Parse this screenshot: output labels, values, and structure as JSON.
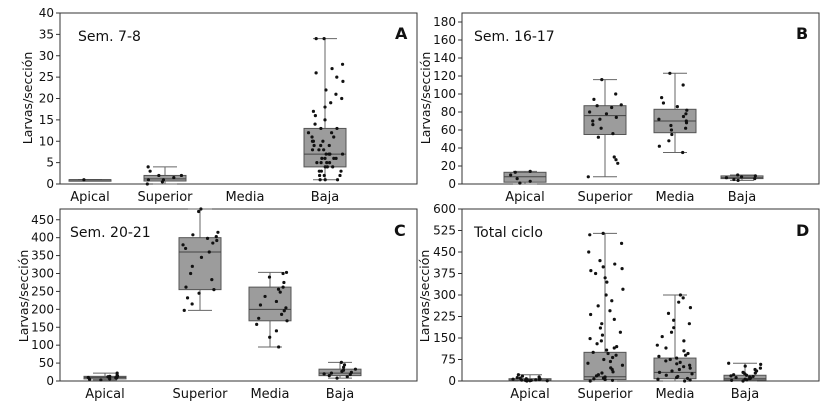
{
  "colors": {
    "box": "#9c9c9c",
    "box_stroke": "#555555",
    "point": "#111111",
    "whisker": "#666666"
  },
  "chart_data": [
    {
      "type": "box",
      "panel": "A",
      "title": "Sem. 7-8",
      "ylabel": "Larvas/sección",
      "ylim": [
        0,
        40
      ],
      "yticks": [
        0,
        5,
        10,
        15,
        20,
        25,
        30,
        35,
        40
      ],
      "categories": [
        "Apical",
        "Superior",
        "Media",
        "Baja"
      ],
      "boxes": [
        {
          "min": 1,
          "q1": 1,
          "median": 1,
          "q3": 1,
          "max": 1
        },
        {
          "min": 0,
          "q1": 0.7,
          "median": 1.2,
          "q3": 2,
          "max": 4
        },
        null,
        {
          "min": 1,
          "q1": 4,
          "median": 7,
          "q3": 13,
          "max": 34
        }
      ],
      "points": [
        [
          1
        ],
        [
          0,
          0.5,
          1,
          1,
          1.5,
          2,
          2,
          3,
          4
        ],
        [],
        [
          1,
          1,
          1,
          2,
          2,
          2,
          3,
          3,
          3,
          4,
          4,
          4,
          5,
          5,
          5,
          5,
          6,
          6,
          6,
          6,
          7,
          7,
          7,
          7,
          7,
          8,
          8,
          8,
          9,
          9,
          9,
          10,
          10,
          10,
          11,
          11,
          12,
          12,
          13,
          13,
          14,
          15,
          16,
          17,
          18,
          19,
          20,
          21,
          22,
          24,
          25,
          26,
          27,
          28,
          34,
          34
        ]
      ]
    },
    {
      "type": "box",
      "panel": "B",
      "title": "Sem. 16-17",
      "ylabel": "Larvas/sección",
      "ylim": [
        0,
        190
      ],
      "yticks": [
        0,
        20,
        40,
        60,
        80,
        100,
        120,
        140,
        160,
        180
      ],
      "categories": [
        "Apical",
        "Superior",
        "Media",
        "Baja"
      ],
      "boxes": [
        {
          "min": 0,
          "q1": 2,
          "median": 8,
          "q3": 13,
          "max": 14
        },
        {
          "min": 8,
          "q1": 55,
          "median": 76,
          "q3": 87,
          "max": 116
        },
        {
          "min": 35,
          "q1": 57,
          "median": 70,
          "q3": 83,
          "max": 123
        },
        {
          "min": 4,
          "q1": 6,
          "median": 7,
          "q3": 9,
          "max": 10
        }
      ],
      "points": [
        [
          1,
          3,
          6,
          10,
          13,
          14
        ],
        [
          8,
          23,
          27,
          30,
          52,
          56,
          62,
          66,
          70,
          72,
          74,
          78,
          80,
          85,
          87,
          88,
          94,
          100,
          116
        ],
        [
          35,
          42,
          48,
          55,
          60,
          62,
          65,
          68,
          70,
          72,
          75,
          78,
          82,
          86,
          90,
          96,
          110,
          123
        ],
        [
          4,
          5,
          6,
          7,
          8,
          9,
          10
        ]
      ]
    },
    {
      "type": "box",
      "panel": "C",
      "title": "Sem. 20-21",
      "ylabel": "Larvas/sección",
      "ylim": [
        0,
        480
      ],
      "yticks": [
        0,
        50,
        100,
        150,
        200,
        250,
        300,
        350,
        400,
        450
      ],
      "categories": [
        "Apical",
        "Superior",
        "Media",
        "Baja"
      ],
      "boxes": [
        {
          "min": 3,
          "q1": 6,
          "median": 10,
          "q3": 13,
          "max": 22
        },
        {
          "min": 197,
          "q1": 255,
          "median": 360,
          "q3": 400,
          "max": 480
        },
        {
          "min": 95,
          "q1": 168,
          "median": 200,
          "q3": 262,
          "max": 303
        },
        {
          "min": 8,
          "q1": 15,
          "median": 22,
          "q3": 33,
          "max": 52
        }
      ],
      "points": [
        [
          3,
          5,
          6,
          8,
          9,
          10,
          11,
          12,
          13,
          14,
          16,
          22
        ],
        [
          197,
          215,
          232,
          245,
          255,
          262,
          283,
          300,
          320,
          345,
          360,
          370,
          380,
          385,
          392,
          398,
          403,
          408,
          415,
          473,
          480
        ],
        [
          95,
          122,
          140,
          158,
          168,
          175,
          186,
          196,
          204,
          212,
          222,
          236,
          248,
          256,
          262,
          275,
          290,
          300,
          303
        ],
        [
          8,
          12,
          15,
          18,
          20,
          22,
          24,
          27,
          30,
          33,
          38,
          45,
          52
        ]
      ]
    },
    {
      "type": "box",
      "panel": "D",
      "title": "Total ciclo",
      "ylabel": "Larvas/sección",
      "ylim": [
        0,
        600
      ],
      "yticks": [
        0,
        75,
        150,
        225,
        300,
        375,
        450,
        525,
        600
      ],
      "categories": [
        "Apical",
        "Superior",
        "Media",
        "Baja"
      ],
      "boxes": [
        {
          "min": 0,
          "q1": 1,
          "median": 3,
          "q3": 8,
          "max": 22
        },
        {
          "min": 0,
          "q1": 5,
          "median": 15,
          "q3": 100,
          "max": 515
        },
        {
          "min": 0,
          "q1": 8,
          "median": 30,
          "q3": 80,
          "max": 300
        },
        {
          "min": 0,
          "q1": 3,
          "median": 8,
          "q3": 20,
          "max": 62
        }
      ],
      "points": [
        [
          0,
          1,
          1,
          2,
          2,
          3,
          3,
          4,
          5,
          6,
          7,
          8,
          10,
          12,
          14,
          17,
          22
        ],
        [
          0,
          2,
          5,
          8,
          10,
          14,
          18,
          22,
          28,
          32,
          40,
          46,
          55,
          62,
          68,
          75,
          82,
          90,
          96,
          100,
          108,
          115,
          120,
          130,
          140,
          148,
          160,
          170,
          185,
          200,
          215,
          232,
          245,
          262,
          280,
          300,
          320,
          345,
          360,
          375,
          385,
          392,
          398,
          408,
          420,
          450,
          480,
          510,
          515
        ],
        [
          0,
          3,
          6,
          9,
          12,
          16,
          20,
          25,
          30,
          35,
          40,
          45,
          50,
          55,
          60,
          65,
          70,
          75,
          80,
          86,
          90,
          96,
          105,
          115,
          125,
          140,
          155,
          170,
          186,
          200,
          212,
          236,
          256,
          275,
          290,
          300
        ],
        [
          0,
          2,
          4,
          6,
          8,
          10,
          12,
          14,
          16,
          18,
          20,
          22,
          25,
          28,
          30,
          35,
          40,
          45,
          52,
          58,
          62
        ]
      ]
    }
  ]
}
